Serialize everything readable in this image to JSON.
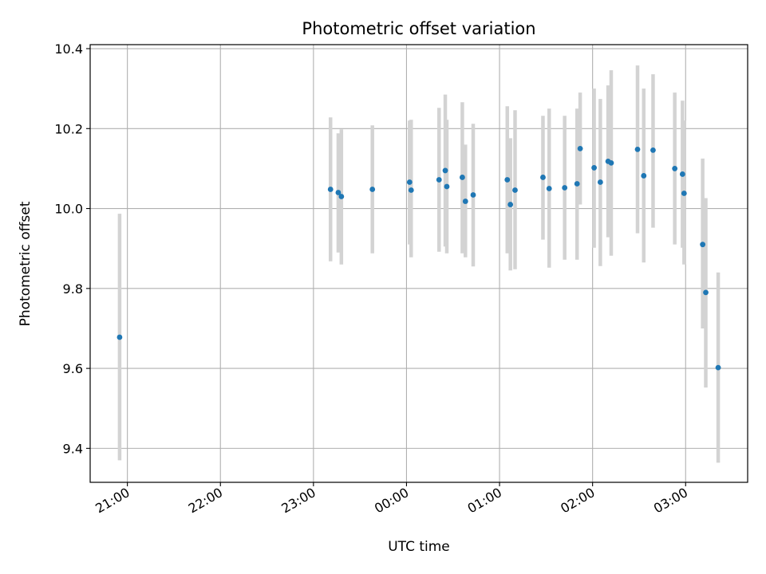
{
  "chart_data": {
    "type": "scatter",
    "title": "Photometric offset variation",
    "xlabel": "UTC time",
    "ylabel": "Photometric offset",
    "x_ticks": [
      "21:00",
      "22:00",
      "23:00",
      "00:00",
      "01:00",
      "02:00",
      "03:00"
    ],
    "x_tick_values": [
      "2000-01-01 21:00",
      "2000-01-01 22:00",
      "2000-01-01 23:00",
      "2000-01-02 00:00",
      "2000-01-02 01:00",
      "2000-01-02 02:00",
      "2000-01-02 03:00"
    ],
    "y_ticks": [
      9.4,
      9.6,
      9.8,
      10.0,
      10.2,
      10.4
    ],
    "y_tick_labels": [
      "9.4",
      "9.6",
      "9.8",
      "10.0",
      "10.2",
      "10.4"
    ],
    "xlim": [
      "2000-01-01 20:36",
      "2000-01-02 03:40"
    ],
    "ylim": [
      9.315,
      10.41
    ],
    "grid": true,
    "point_color": "#1f77b4",
    "errorbar_color": "#d3d3d3",
    "points": [
      {
        "x": "2000-01-01 20:55",
        "y": 9.678,
        "lo": 9.37,
        "hi": 9.987
      },
      {
        "x": "2000-01-01 23:11",
        "y": 10.048,
        "lo": 9.868,
        "hi": 10.228
      },
      {
        "x": "2000-01-01 23:16",
        "y": 10.04,
        "lo": 9.89,
        "hi": 10.188
      },
      {
        "x": "2000-01-01 23:18",
        "y": 10.03,
        "lo": 9.86,
        "hi": 10.198
      },
      {
        "x": "2000-01-01 23:38",
        "y": 10.048,
        "lo": 9.888,
        "hi": 10.208
      },
      {
        "x": "2000-01-02 00:02",
        "y": 10.066,
        "lo": 9.91,
        "hi": 10.22
      },
      {
        "x": "2000-01-02 00:03",
        "y": 10.046,
        "lo": 9.878,
        "hi": 10.222
      },
      {
        "x": "2000-01-02 00:21",
        "y": 10.072,
        "lo": 9.892,
        "hi": 10.252
      },
      {
        "x": "2000-01-02 00:25",
        "y": 10.095,
        "lo": 9.905,
        "hi": 10.285
      },
      {
        "x": "2000-01-02 00:26",
        "y": 10.055,
        "lo": 9.888,
        "hi": 10.222
      },
      {
        "x": "2000-01-02 00:36",
        "y": 10.078,
        "lo": 9.888,
        "hi": 10.266
      },
      {
        "x": "2000-01-02 00:38",
        "y": 10.018,
        "lo": 9.878,
        "hi": 10.16
      },
      {
        "x": "2000-01-02 00:43",
        "y": 10.034,
        "lo": 9.855,
        "hi": 10.212
      },
      {
        "x": "2000-01-02 01:05",
        "y": 10.072,
        "lo": 9.888,
        "hi": 10.256
      },
      {
        "x": "2000-01-02 01:07",
        "y": 10.01,
        "lo": 9.845,
        "hi": 10.176
      },
      {
        "x": "2000-01-02 01:10",
        "y": 10.046,
        "lo": 9.848,
        "hi": 10.246
      },
      {
        "x": "2000-01-02 01:28",
        "y": 10.078,
        "lo": 9.922,
        "hi": 10.232
      },
      {
        "x": "2000-01-02 01:32",
        "y": 10.05,
        "lo": 9.852,
        "hi": 10.25
      },
      {
        "x": "2000-01-02 01:42",
        "y": 10.052,
        "lo": 9.872,
        "hi": 10.232
      },
      {
        "x": "2000-01-02 01:50",
        "y": 10.062,
        "lo": 9.872,
        "hi": 10.25
      },
      {
        "x": "2000-01-02 01:52",
        "y": 10.15,
        "lo": 10.01,
        "hi": 10.29
      },
      {
        "x": "2000-01-02 02:01",
        "y": 10.102,
        "lo": 9.902,
        "hi": 10.3
      },
      {
        "x": "2000-01-02 02:05",
        "y": 10.066,
        "lo": 9.856,
        "hi": 10.274
      },
      {
        "x": "2000-01-02 02:10",
        "y": 10.118,
        "lo": 9.928,
        "hi": 10.308
      },
      {
        "x": "2000-01-02 02:12",
        "y": 10.114,
        "lo": 9.882,
        "hi": 10.346
      },
      {
        "x": "2000-01-02 02:29",
        "y": 10.148,
        "lo": 9.938,
        "hi": 10.358
      },
      {
        "x": "2000-01-02 02:33",
        "y": 10.082,
        "lo": 9.865,
        "hi": 10.3
      },
      {
        "x": "2000-01-02 02:39",
        "y": 10.146,
        "lo": 9.952,
        "hi": 10.336
      },
      {
        "x": "2000-01-02 02:53",
        "y": 10.1,
        "lo": 9.91,
        "hi": 10.29
      },
      {
        "x": "2000-01-02 02:58",
        "y": 10.086,
        "lo": 9.902,
        "hi": 10.27
      },
      {
        "x": "2000-01-02 02:59",
        "y": 10.038,
        "lo": 9.86,
        "hi": 10.22
      },
      {
        "x": "2000-01-02 03:11",
        "y": 9.91,
        "lo": 9.7,
        "hi": 10.125
      },
      {
        "x": "2000-01-02 03:13",
        "y": 9.79,
        "lo": 9.552,
        "hi": 10.026
      },
      {
        "x": "2000-01-02 03:21",
        "y": 9.602,
        "lo": 9.364,
        "hi": 9.84
      }
    ]
  }
}
